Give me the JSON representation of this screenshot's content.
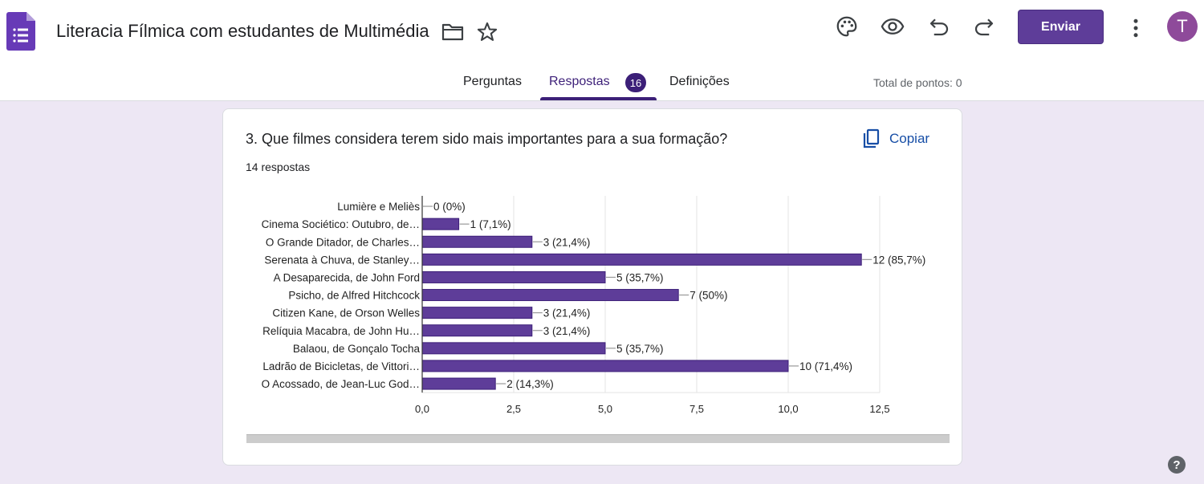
{
  "header": {
    "doc_title": "Literacia Fílmica com estudantes de Multimédia",
    "send_label": "Enviar",
    "avatar_initial": "T",
    "icons": [
      "forms-logo-icon",
      "folder-icon",
      "star-icon",
      "palette-icon",
      "eye-icon",
      "undo-icon",
      "redo-icon",
      "more-vert-icon"
    ]
  },
  "tabs": {
    "questions": "Perguntas",
    "responses": "Respostas",
    "responses_badge": "16",
    "settings": "Definições",
    "total_points": "Total de pontos: 0"
  },
  "colors": {
    "accent": "#5e3d99",
    "tab_active": "#3c1f78",
    "bar": "#5e3d99",
    "background": "#ede7f4"
  },
  "card": {
    "question": "3. Que filmes considera terem sido mais importantes para a sua formação?",
    "copy_label": "Copiar",
    "response_count": "14 respostas"
  },
  "chart_data": {
    "type": "bar",
    "orientation": "horizontal",
    "categories": [
      "Lumière e Meliès",
      "Cinema Sociético: Outubro, de…",
      "O Grande Ditador, de Charles…",
      "Serenata à Chuva, de Stanley…",
      "A Desaparecida, de John Ford",
      "Psicho, de Alfred Hitchcock",
      "Citizen Kane, de Orson Welles",
      "Relíquia Macabra, de John Hu…",
      "Balaou, de Gonçalo Tocha",
      "Ladrão de Bicicletas, de Vittori…",
      "O Acossado, de Jean-Luc God…"
    ],
    "values": [
      0,
      1,
      3,
      12,
      5,
      7,
      3,
      3,
      5,
      10,
      2
    ],
    "data_labels": [
      "0 (0%)",
      "1 (7,1%)",
      "3 (21,4%)",
      "12 (85,7%)",
      "5 (35,7%)",
      "7 (50%)",
      "3 (21,4%)",
      "3 (21,4%)",
      "5 (35,7%)",
      "10 (71,4%)",
      "2 (14,3%)"
    ],
    "xlim": [
      0,
      12.5
    ],
    "xticks": [
      "0,0",
      "2,5",
      "5,0",
      "7,5",
      "10,0",
      "12,5"
    ],
    "xtick_values": [
      0,
      2.5,
      5,
      7.5,
      10,
      12.5
    ],
    "grid": true,
    "title": "",
    "xlabel": "",
    "ylabel": ""
  },
  "help_icon": "help-icon"
}
